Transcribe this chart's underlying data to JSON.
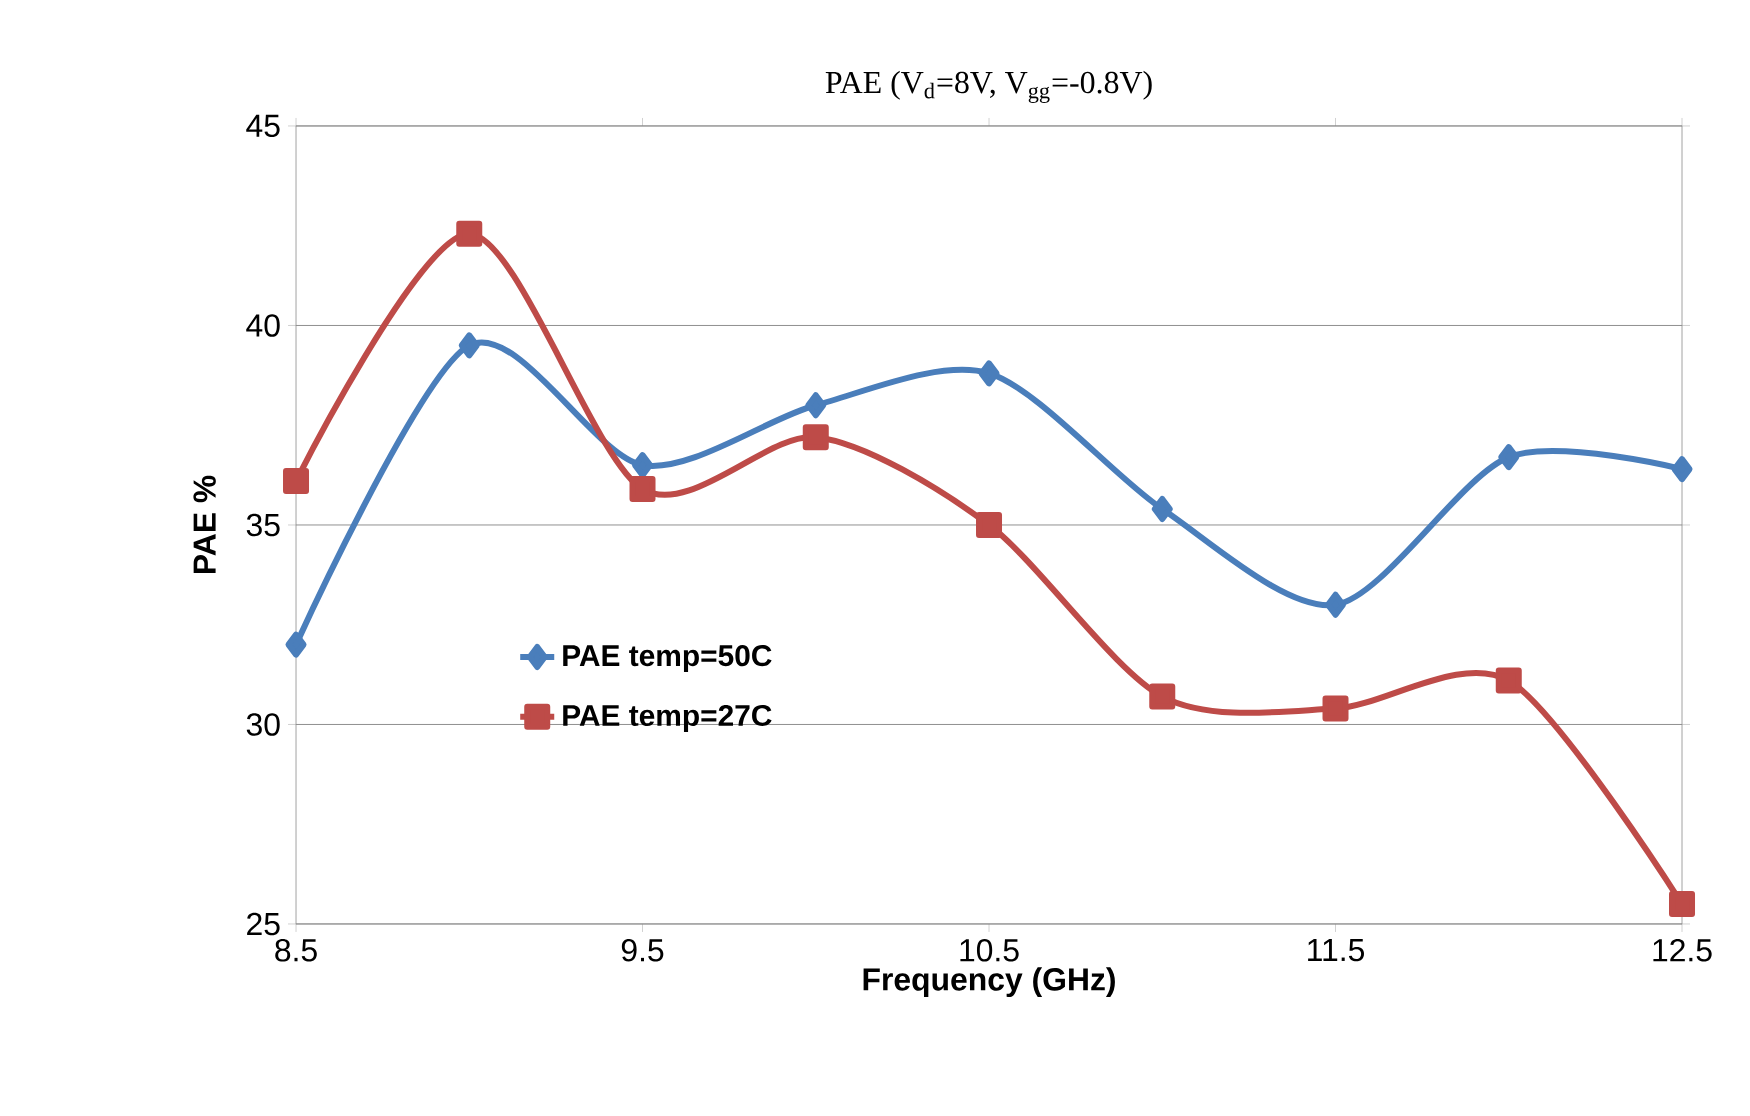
{
  "chart_data": {
    "type": "line",
    "title": "PAE (V$_{d}$=8V, V$_{gg}$=-0.8V)",
    "xlabel": "Frequency (GHz)",
    "ylabel": "PAE %",
    "x": [
      8.5,
      9.0,
      9.5,
      10.0,
      10.5,
      11.0,
      11.5,
      12.0,
      12.5
    ],
    "series": [
      {
        "name": "PAE  temp=50C",
        "color": "#4a7ebb",
        "marker": "diamond",
        "values": [
          32.0,
          39.5,
          36.5,
          38.0,
          38.8,
          35.4,
          33.0,
          36.7,
          36.4
        ]
      },
      {
        "name": "PAE temp=27C",
        "color": "#be4b48",
        "marker": "square",
        "values": [
          36.1,
          42.3,
          35.9,
          37.2,
          35.0,
          30.7,
          30.4,
          31.1,
          25.5
        ]
      }
    ],
    "xlim": [
      8.5,
      12.5
    ],
    "xticks": [
      8.5,
      9.5,
      10.5,
      11.5,
      12.5
    ],
    "ylim": [
      25,
      45
    ],
    "yticks": [
      25,
      30,
      35,
      40,
      45
    ],
    "grid": "y",
    "legend": "left"
  }
}
